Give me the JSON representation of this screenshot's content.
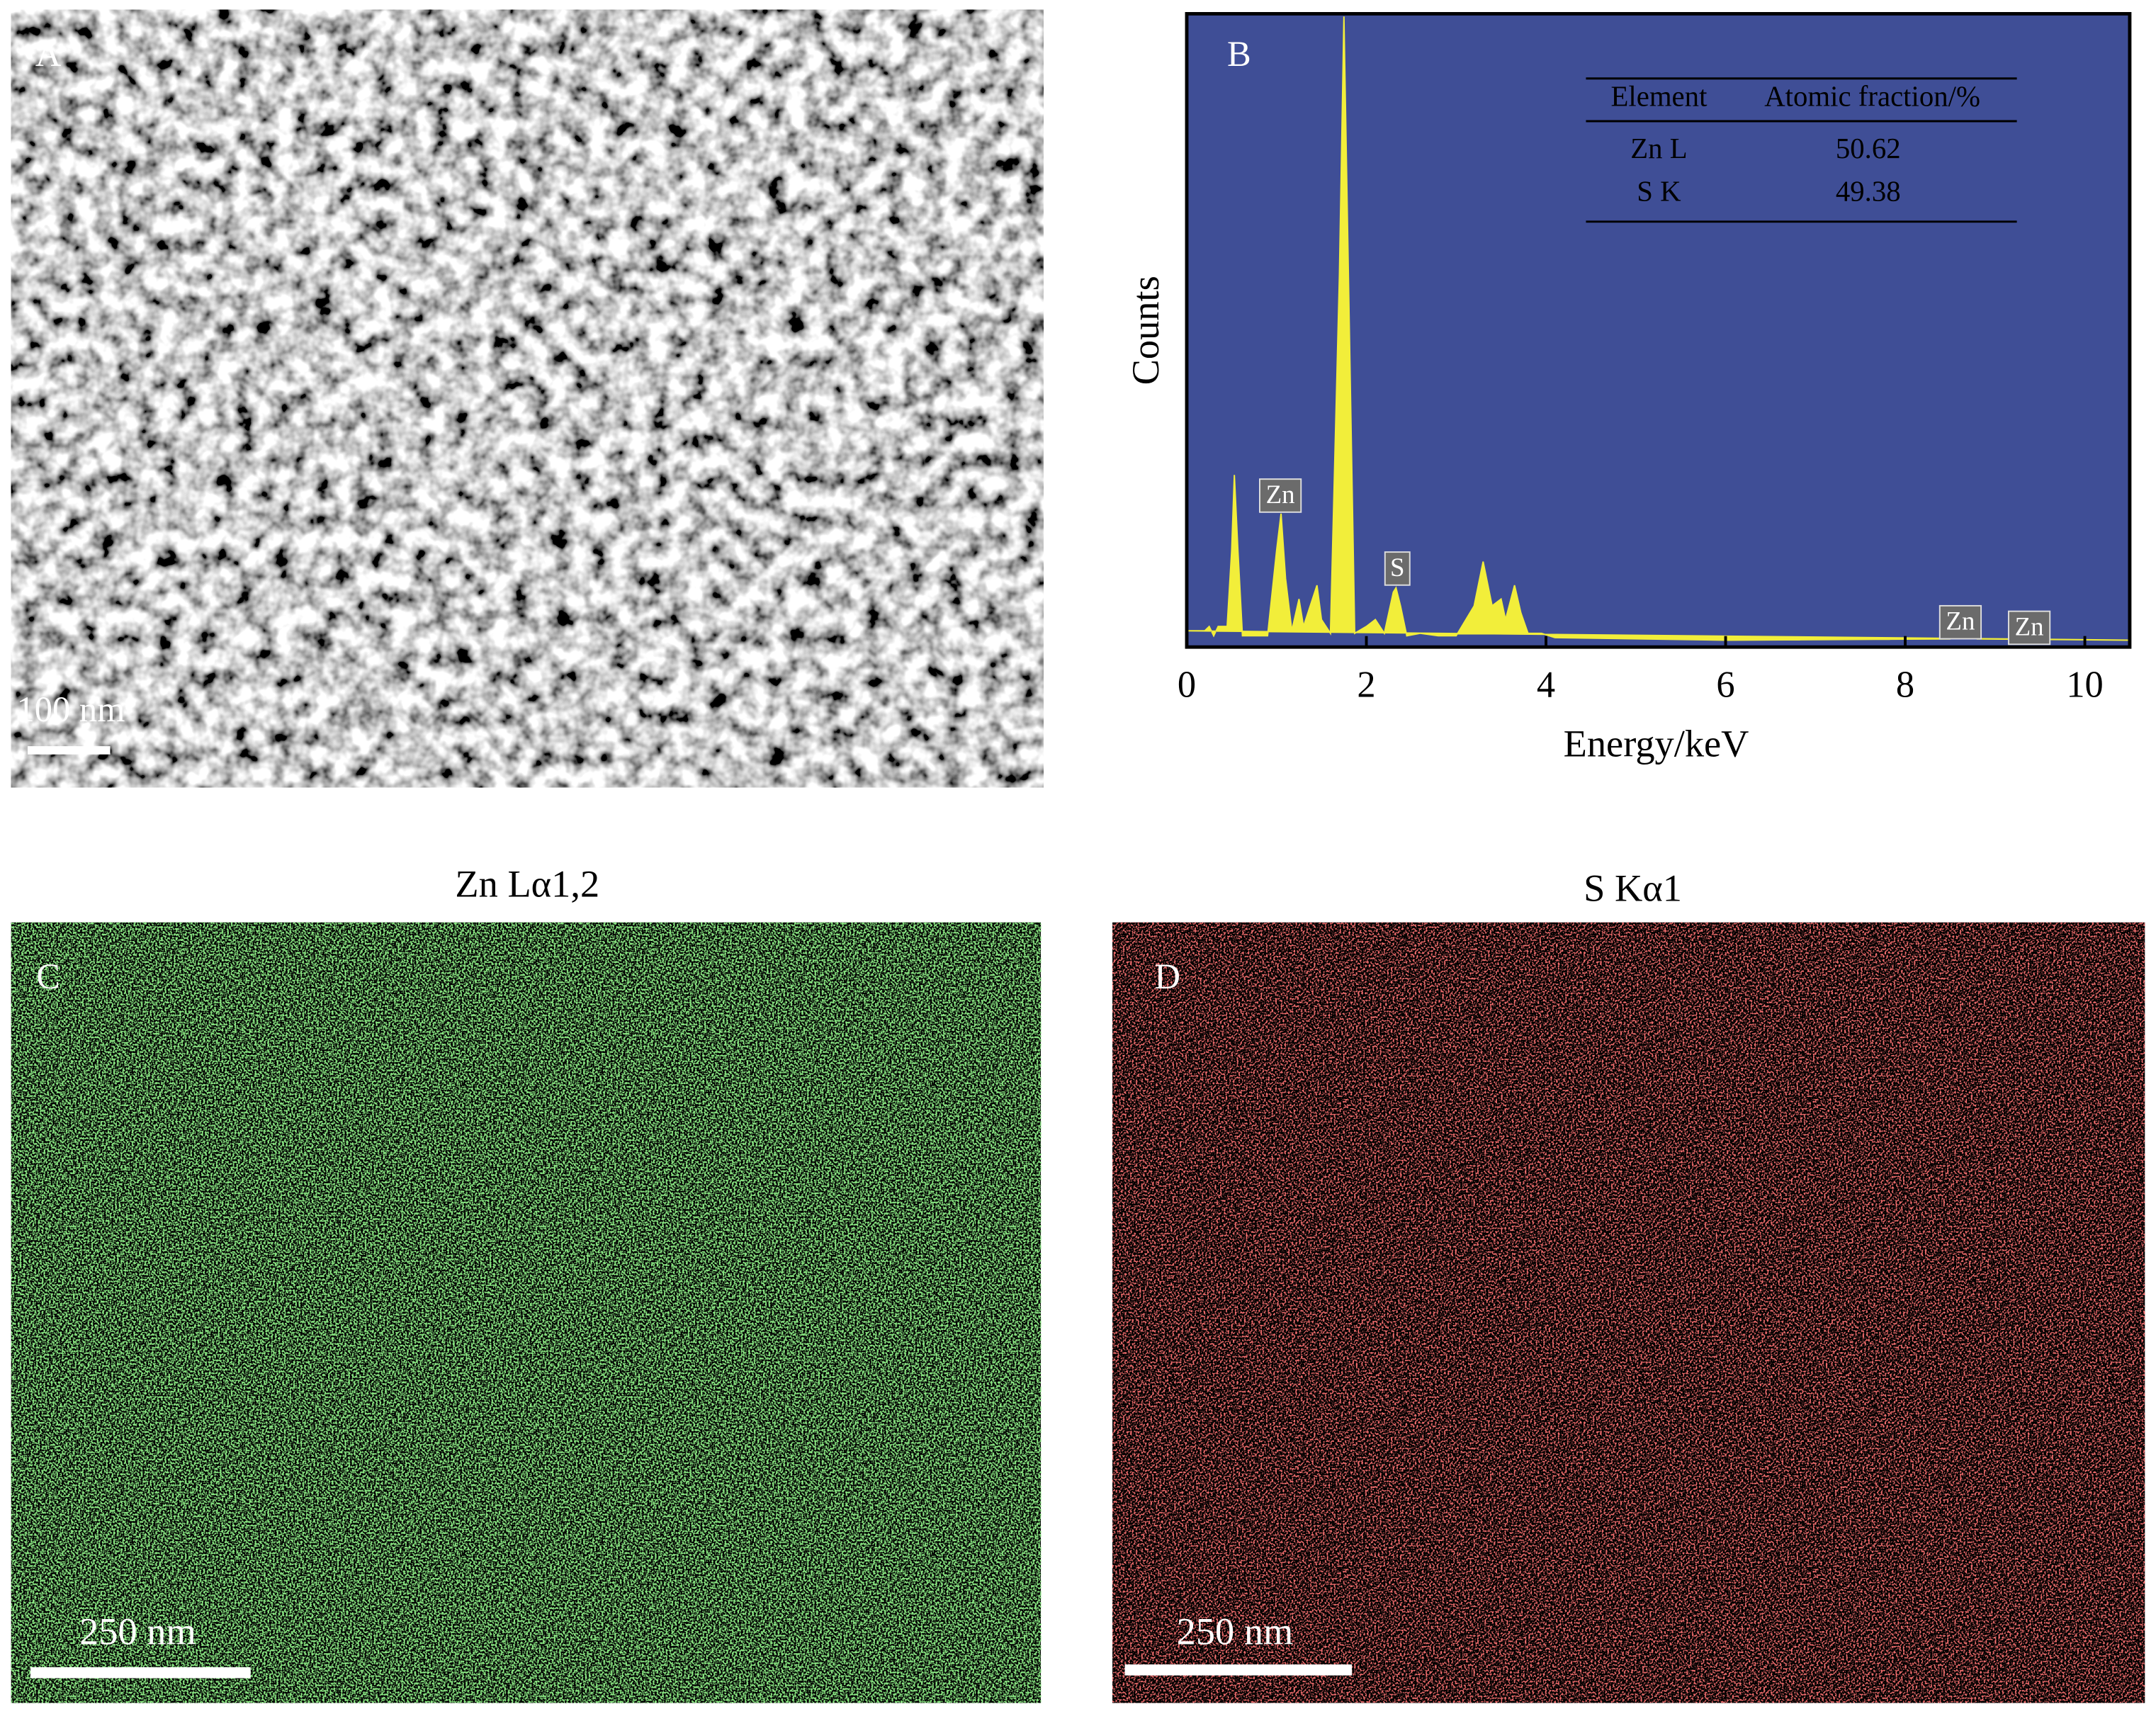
{
  "panel_a": {
    "label": "A",
    "scale_bar": "100 nm"
  },
  "chart_data": {
    "type": "line",
    "label": "B",
    "x_label": "Energy/keV",
    "y_label": "Counts",
    "xlim": [
      0,
      10.5
    ],
    "xticks": [
      0,
      2,
      4,
      6,
      8,
      10
    ],
    "ylim": [
      0,
      100
    ],
    "series": [
      {
        "color": "#f2ee3a",
        "x": [
          0,
          0.2,
          0.25,
          0.3,
          0.35,
          0.45,
          0.5,
          0.53,
          0.57,
          0.62,
          0.9,
          1.0,
          1.05,
          1.1,
          1.17,
          1.25,
          1.3,
          1.45,
          1.5,
          1.6,
          1.7,
          1.75,
          1.8,
          1.87,
          2.0,
          2.1,
          2.2,
          2.3,
          2.33,
          2.38,
          2.45,
          2.6,
          2.8,
          3.0,
          3.2,
          3.3,
          3.4,
          3.5,
          3.55,
          3.65,
          3.72,
          3.8,
          3.95,
          4.1,
          6,
          8.5,
          8.65,
          8.8,
          10.5
        ],
        "values": [
          1.5,
          1.5,
          2.2,
          0.7,
          2.2,
          2.2,
          14.3,
          26.5,
          14.3,
          0.7,
          0.7,
          14.3,
          20.3,
          9.9,
          1.5,
          6.6,
          2.2,
          8.8,
          3.3,
          1.1,
          58.5,
          100,
          58.5,
          1.1,
          2.2,
          3.3,
          1.1,
          7.7,
          8.4,
          5.5,
          0.7,
          1.1,
          0.7,
          0.7,
          5.5,
          12.6,
          5.5,
          6.6,
          3.3,
          8.8,
          4.4,
          1.1,
          1.1,
          0.4,
          0,
          0.2,
          0.9,
          0.2,
          0
        ]
      }
    ],
    "peak_labels": [
      "Zn",
      "S",
      "Zn",
      "Zn"
    ],
    "table": {
      "header": [
        "Element",
        "Atomic fraction/%"
      ],
      "rows": [
        [
          "Zn L",
          50.62
        ],
        [
          "S K",
          49.38
        ]
      ]
    }
  },
  "panel_c": {
    "title": "Zn Lα1,2",
    "label": "C",
    "scale_bar": "250 nm"
  },
  "panel_d": {
    "title": "S Kα1",
    "label": "D",
    "scale_bar": "250 nm"
  }
}
